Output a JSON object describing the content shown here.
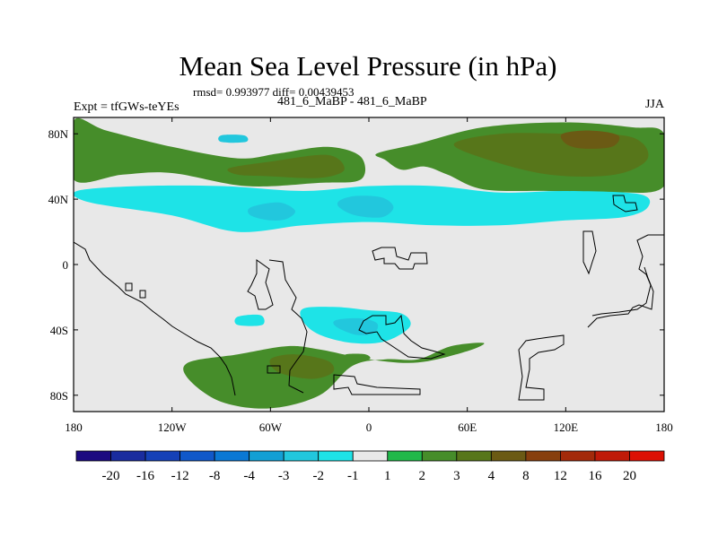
{
  "chart_data": {
    "type": "heatmap",
    "title": "Mean Sea Level Pressure (in hPa)",
    "stats_text": "rmsd= 0.993977 diff= 0.00439453",
    "left_label": "Expt = tfGWs-teYEs",
    "center_label": "481_6_MaBP - 481_6_MaBP",
    "right_label": "JJA",
    "x_ticks": [
      "180",
      "120W",
      "60W",
      "0",
      "60E",
      "120E",
      "180"
    ],
    "y_ticks": [
      "80N",
      "40N",
      "0",
      "40S",
      "80S"
    ],
    "x_tick_values": [
      -180,
      -120,
      -60,
      0,
      60,
      120,
      180
    ],
    "y_tick_values": [
      80,
      40,
      0,
      -40,
      -80
    ],
    "xlim": [
      -180,
      180
    ],
    "ylim": [
      -90,
      90
    ],
    "colorbar_labels": [
      "-20",
      "-16",
      "-12",
      "-8",
      "-4",
      "-3",
      "-2",
      "-1",
      "1",
      "2",
      "3",
      "4",
      "8",
      "12",
      "16",
      "20"
    ],
    "colorbar_colors": [
      "#1c0a80",
      "#1a2c9e",
      "#1541b7",
      "#1058c9",
      "#0a78d4",
      "#139fd4",
      "#22c7dd",
      "#1ee3e7",
      "#e8e8e8",
      "#22b84a",
      "#468d2a",
      "#57761a",
      "#6b5a14",
      "#873f0e",
      "#a32a0a",
      "#bf1a08",
      "#dc1004"
    ],
    "regions": [
      {
        "name": "arctic-cyan-patch",
        "level": "-2",
        "lon": [
          -90,
          -76,
          -75,
          -90
        ],
        "lat": [
          79,
          79,
          75,
          75
        ]
      },
      {
        "name": "north-positive-band-west",
        "level": "2",
        "lon": [
          -180,
          -160,
          -120,
          -80,
          -55,
          -25,
          -5,
          -5,
          -30,
          -75,
          -120,
          -150,
          -180
        ],
        "lat": [
          88,
          82,
          72,
          65,
          68,
          72,
          66,
          52,
          50,
          48,
          56,
          55,
          52
        ]
      },
      {
        "name": "north-positive-band-east",
        "level": "2",
        "lon": [
          5,
          30,
          70,
          120,
          160,
          180,
          180,
          150,
          110,
          70,
          48,
          34,
          20,
          10
        ],
        "lat": [
          68,
          74,
          84,
          87,
          84,
          80,
          48,
          44,
          45,
          46,
          55,
          60,
          58,
          64
        ]
      },
      {
        "name": "north-atlantic-high-core",
        "level": "3",
        "lon": [
          -85,
          -60,
          -25,
          -15,
          -30,
          -60,
          -80
        ],
        "lat": [
          59,
          63,
          67,
          58,
          53,
          54,
          55
        ]
      },
      {
        "name": "siberian-high-core",
        "level": "3",
        "lon": [
          52,
          80,
          120,
          160,
          170,
          150,
          110,
          70
        ],
        "lat": [
          74,
          80,
          80,
          78,
          65,
          55,
          55,
          65
        ]
      },
      {
        "name": "siberian-high-peak",
        "level": "4",
        "lon": [
          118,
          135,
          152,
          148,
          130,
          120
        ],
        "lat": [
          80,
          82,
          79,
          72,
          71,
          74
        ]
      },
      {
        "name": "midlatitude-negative-band",
        "level": "-1",
        "lon": [
          -178,
          -140,
          -90,
          -40,
          0,
          40,
          80,
          120,
          165,
          170,
          155,
          120,
          80,
          40,
          0,
          -40,
          -80,
          -120,
          -170
        ],
        "lat": [
          45,
          48,
          48,
          45,
          48,
          48,
          44,
          45,
          43,
          35,
          29,
          27,
          24,
          24,
          26,
          24,
          20,
          30,
          38
        ]
      },
      {
        "name": "pacific-negative-core",
        "level": "-2",
        "lon": [
          -72,
          -55,
          -45,
          -50,
          -60,
          -72
        ],
        "lat": [
          35,
          38,
          33,
          28,
          27,
          30
        ]
      },
      {
        "name": "atlantic-negative-core",
        "level": "-2",
        "lon": [
          -18,
          -8,
          8,
          15,
          8,
          -8,
          -18
        ],
        "lat": [
          39,
          42,
          41,
          35,
          29,
          30,
          35
        ]
      },
      {
        "name": "south-small-negative",
        "level": "-1",
        "lon": [
          -80,
          -66,
          -65,
          -80
        ],
        "lat": [
          -32,
          -31,
          -37,
          -37
        ]
      },
      {
        "name": "southern-negative-cell",
        "level": "-1",
        "lon": [
          -40,
          -20,
          0,
          20,
          25,
          10,
          -10,
          -30,
          -40
        ],
        "lat": [
          -27,
          -26,
          -28,
          -30,
          -38,
          -47,
          -48,
          -43,
          -35
        ]
      },
      {
        "name": "southern-negative-core",
        "level": "-2",
        "lon": [
          -20,
          -5,
          5,
          3,
          -8,
          -20
        ],
        "lat": [
          -34,
          -33,
          -36,
          -42,
          -43,
          -38
        ]
      },
      {
        "name": "southern-positive-band",
        "level": "2",
        "lon": [
          -110,
          -80,
          -50,
          -30,
          0,
          30,
          60,
          70,
          50,
          30,
          10,
          -10,
          -30,
          -60,
          -90,
          -110
        ],
        "lat": [
          -60,
          -55,
          -50,
          -52,
          -58,
          -60,
          -53,
          -48,
          -50,
          -58,
          -58,
          -62,
          -80,
          -88,
          -84,
          -70
        ]
      },
      {
        "name": "southern-positive-core",
        "level": "3",
        "lon": [
          -60,
          -45,
          -25,
          -22,
          -35,
          -55
        ],
        "lat": [
          -58,
          -55,
          -59,
          -66,
          -70,
          -66
        ]
      },
      {
        "name": "southern-green-patch",
        "level": "2",
        "lon": [
          -14,
          -2,
          0,
          -14
        ],
        "lat": [
          -55,
          -55,
          -58,
          -58
        ]
      }
    ]
  }
}
